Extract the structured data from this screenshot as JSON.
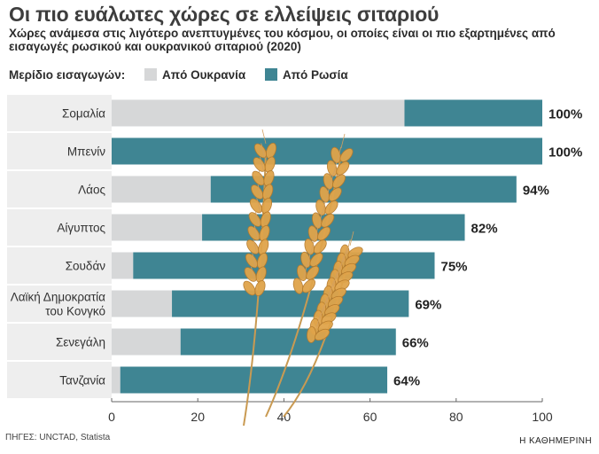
{
  "title": "Οι πιο ευάλωτες χώρες σε ελλείψεις σιταριού",
  "subtitle": "Χώρες ανάμεσα στις λιγότερο ανεπτυγμένες του κόσμου, οι οποίες είναι οι πιο εξαρτημένες από εισαγωγές ρωσικού και ουκρανικού σιταριού (2020)",
  "legend": {
    "label": "Μερίδιο εισαγωγών:",
    "ukraine": "Από Ουκρανία",
    "russia": "Από Ρωσία"
  },
  "source": "ΠΗΓΕΣ: UNCTAD, Statista",
  "brand": "Η ΚΑΘΗΜΕΡΙΝΗ",
  "colors": {
    "ukraine": "#d6d7d8",
    "russia": "#3f8593",
    "row_band": "#eeeeee"
  },
  "chart_data": {
    "type": "bar",
    "orientation": "horizontal",
    "stacked": true,
    "categories": [
      "Σομαλία",
      "Μπενίν",
      "Λάος",
      "Αίγυπτος",
      "Σουδάν",
      "Λαϊκή Δημοκρατία του Κονγκό",
      "Σενεγάλη",
      "Τανζανία"
    ],
    "series": [
      {
        "name": "Από Ουκρανία",
        "values": [
          68,
          0,
          23,
          21,
          5,
          14,
          16,
          2
        ]
      },
      {
        "name": "Από Ρωσία",
        "values": [
          32,
          100,
          71,
          61,
          70,
          55,
          50,
          62
        ]
      }
    ],
    "totals": [
      "100%",
      "100%",
      "94%",
      "82%",
      "75%",
      "69%",
      "66%",
      "64%"
    ],
    "xlim": [
      0,
      100
    ],
    "xticks": [
      "0",
      "20",
      "40",
      "60",
      "80",
      "100"
    ]
  }
}
